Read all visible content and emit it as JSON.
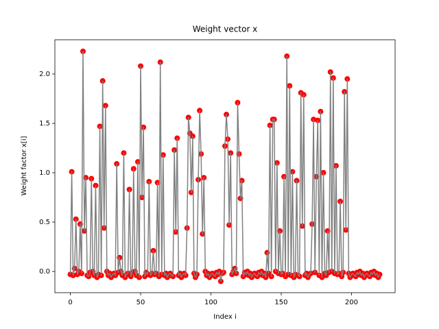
{
  "chart_data": {
    "type": "line_scatter",
    "title": "Weight vector x",
    "x_label": "Index i",
    "y_label": "Weight factor x[i]",
    "line_color": "#808080",
    "marker_color": "#ff0000",
    "xlim": [
      -11,
      231
    ],
    "ylim": [
      -0.215,
      2.347
    ],
    "xticks": [
      0,
      50,
      100,
      150,
      200
    ],
    "yticks": [
      {
        "value": 0,
        "label": "0.0"
      },
      {
        "value": 0.5,
        "label": "0.5"
      },
      {
        "value": 1,
        "label": "1.0"
      },
      {
        "value": 1.5,
        "label": "1.5"
      },
      {
        "value": 2,
        "label": "2.0"
      }
    ],
    "x": [
      0,
      1,
      2,
      3,
      4,
      5,
      6,
      7,
      8,
      9,
      10,
      11,
      12,
      13,
      14,
      15,
      16,
      17,
      18,
      19,
      20,
      21,
      22,
      23,
      24,
      25,
      26,
      27,
      28,
      29,
      30,
      31,
      32,
      33,
      34,
      35,
      36,
      37,
      38,
      39,
      40,
      41,
      42,
      43,
      44,
      45,
      46,
      47,
      48,
      49,
      50,
      51,
      52,
      53,
      54,
      55,
      56,
      57,
      58,
      59,
      60,
      61,
      62,
      63,
      64,
      65,
      66,
      67,
      68,
      69,
      70,
      71,
      72,
      73,
      74,
      75,
      76,
      77,
      78,
      79,
      80,
      81,
      82,
      83,
      84,
      85,
      86,
      87,
      88,
      89,
      90,
      91,
      92,
      93,
      94,
      95,
      96,
      97,
      98,
      99,
      100,
      101,
      102,
      103,
      104,
      105,
      106,
      107,
      108,
      109,
      110,
      111,
      112,
      113,
      114,
      115,
      116,
      117,
      118,
      119,
      120,
      121,
      122,
      123,
      124,
      125,
      126,
      127,
      128,
      129,
      130,
      131,
      132,
      133,
      134,
      135,
      136,
      137,
      138,
      139,
      140,
      141,
      142,
      143,
      144,
      145,
      146,
      147,
      148,
      149,
      150,
      151,
      152,
      153,
      154,
      155,
      156,
      157,
      158,
      159,
      160,
      161,
      162,
      163,
      164,
      165,
      166,
      167,
      168,
      169,
      170,
      171,
      172,
      173,
      174,
      175,
      176,
      177,
      178,
      179,
      180,
      181,
      182,
      183,
      184,
      185,
      186,
      187,
      188,
      189,
      190,
      191,
      192,
      193,
      194,
      195,
      196,
      197,
      198,
      199,
      200,
      201,
      202,
      203,
      204,
      205,
      206,
      207,
      208,
      209,
      210,
      211,
      212,
      213,
      214,
      215,
      216,
      217,
      218,
      219,
      220
    ],
    "values": [
      -0.03,
      1.01,
      -0.04,
      0.03,
      0.53,
      -0.03,
      0,
      0.48,
      -0.02,
      2.23,
      0.41,
      0.95,
      -0.04,
      -0.05,
      -0.01,
      0.94,
      0,
      -0.04,
      0.87,
      -0.06,
      -0.03,
      1.47,
      -0.04,
      1.93,
      0.44,
      1.68,
      0,
      -0.04,
      -0.02,
      -0.06,
      -0.03,
      -0.02,
      -0.04,
      1.09,
      -0.01,
      0.14,
      0,
      -0.04,
      1.2,
      -0.06,
      -0.03,
      -0.02,
      0.83,
      -0.05,
      -0.01,
      1.04,
      0,
      -0.04,
      1.11,
      -0.06,
      2.08,
      0.75,
      1.46,
      -0.05,
      -0.01,
      -0.03,
      0.91,
      -0.04,
      -0.02,
      0.21,
      -0.03,
      -0.02,
      0.9,
      -0.05,
      2.12,
      -0.03,
      1.18,
      -0.04,
      -0.02,
      -0.06,
      -0.03,
      -0.02,
      -0.04,
      -0.05,
      1.23,
      0.4,
      1.35,
      -0.04,
      -0.02,
      -0.06,
      -0.03,
      -0.02,
      -0.04,
      0.44,
      1.56,
      1.4,
      0.8,
      1.37,
      -0.02,
      -0.06,
      -0.03,
      0.93,
      1.63,
      1.19,
      0.38,
      0.95,
      0,
      -0.04,
      -0.02,
      -0.06,
      -0.03,
      -0.02,
      -0.04,
      -0.05,
      -0.01,
      -0.03,
      0,
      -0.1,
      -0.02,
      -0.01,
      1.27,
      1.59,
      1.34,
      0.47,
      1.2,
      -0.03,
      0,
      0.03,
      -0.02,
      1.71,
      1.19,
      0.74,
      0.92,
      -0.05,
      -0.01,
      -0.03,
      0,
      -0.04,
      -0.02,
      -0.06,
      -0.03,
      -0.02,
      -0.04,
      -0.05,
      -0.01,
      -0.03,
      0,
      -0.04,
      -0.02,
      -0.06,
      0.19,
      -0.02,
      1.48,
      -0.05,
      1.54,
      1.54,
      0,
      1.1,
      -0.02,
      0.41,
      -0.03,
      -0.02,
      0.96,
      -0.05,
      2.18,
      -0.03,
      1.88,
      -0.04,
      1.01,
      -0.06,
      -0.03,
      0.92,
      -0.04,
      -0.05,
      1.81,
      0.46,
      1.79,
      -0.04,
      -0.02,
      -0.06,
      -0.03,
      -0.02,
      0.48,
      1.54,
      -0.01,
      0.96,
      1.53,
      -0.04,
      1.62,
      -0.06,
      1,
      -0.02,
      -0.04,
      0.41,
      -0.01,
      2.02,
      0,
      1.96,
      -0.02,
      1.07,
      -0.03,
      -0.02,
      0.71,
      -0.05,
      -0.01,
      1.82,
      0.42,
      1.95,
      -0.02,
      -0.06,
      -0.03,
      -0.02,
      -0.04,
      -0.05,
      -0.01,
      -0.03,
      0,
      -0.04,
      -0.02,
      -0.06,
      -0.03,
      -0.02,
      -0.04,
      -0.05,
      -0.01,
      -0.03,
      0,
      -0.04,
      -0.02,
      -0.06,
      -0.03
    ]
  }
}
